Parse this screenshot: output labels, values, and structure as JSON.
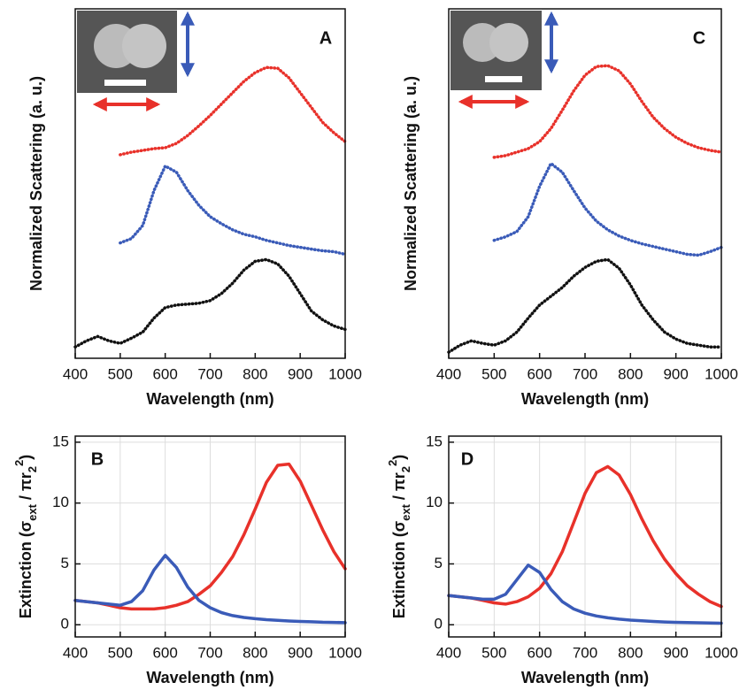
{
  "chart_data": [
    {
      "type": "line",
      "label": "A",
      "line_style": "dotted",
      "grid": false,
      "xlabel": "Wavelength (nm)",
      "ylabel": "Normalized Scattering (a. u.)",
      "xlim": [
        400,
        1000
      ],
      "xticks": [
        400,
        500,
        600,
        700,
        800,
        900,
        1000
      ],
      "ylim": [
        0,
        4
      ],
      "series": [
        {
          "color": "#e8312a",
          "x": [
            500,
            525,
            550,
            575,
            600,
            625,
            650,
            675,
            700,
            725,
            750,
            775,
            800,
            825,
            850,
            875,
            900,
            925,
            950,
            975,
            1000
          ],
          "values": [
            2.33,
            2.36,
            2.38,
            2.4,
            2.41,
            2.46,
            2.55,
            2.66,
            2.78,
            2.91,
            3.04,
            3.17,
            3.27,
            3.33,
            3.32,
            3.21,
            3.04,
            2.87,
            2.7,
            2.58,
            2.48
          ]
        },
        {
          "color": "#3a5bb8",
          "x": [
            500,
            525,
            550,
            575,
            600,
            625,
            650,
            675,
            700,
            725,
            750,
            775,
            800,
            825,
            850,
            875,
            900,
            925,
            950,
            975,
            1000
          ],
          "values": [
            1.32,
            1.37,
            1.52,
            1.92,
            2.2,
            2.13,
            1.92,
            1.75,
            1.62,
            1.54,
            1.47,
            1.42,
            1.39,
            1.35,
            1.32,
            1.29,
            1.27,
            1.25,
            1.23,
            1.22,
            1.19
          ]
        },
        {
          "color": "#111111",
          "x": [
            400,
            425,
            450,
            475,
            500,
            525,
            550,
            575,
            600,
            625,
            650,
            675,
            700,
            725,
            750,
            775,
            800,
            825,
            850,
            875,
            900,
            925,
            950,
            975,
            1000
          ],
          "values": [
            0.13,
            0.2,
            0.25,
            0.2,
            0.17,
            0.23,
            0.3,
            0.46,
            0.58,
            0.61,
            0.62,
            0.63,
            0.66,
            0.74,
            0.86,
            1.01,
            1.11,
            1.13,
            1.08,
            0.94,
            0.74,
            0.54,
            0.44,
            0.37,
            0.33
          ]
        }
      ]
    },
    {
      "type": "line",
      "label": "C",
      "line_style": "dotted",
      "grid": false,
      "xlabel": "Wavelength (nm)",
      "ylabel": "Normalized Scattering (a. u.)",
      "xlim": [
        400,
        1000
      ],
      "xticks": [
        400,
        500,
        600,
        700,
        800,
        900,
        1000
      ],
      "ylim": [
        0,
        4
      ],
      "series": [
        {
          "color": "#e8312a",
          "x": [
            500,
            525,
            550,
            575,
            600,
            625,
            650,
            675,
            700,
            725,
            750,
            775,
            800,
            825,
            850,
            875,
            900,
            925,
            950,
            975,
            1000
          ],
          "values": [
            2.3,
            2.32,
            2.36,
            2.4,
            2.48,
            2.63,
            2.84,
            3.06,
            3.24,
            3.34,
            3.35,
            3.29,
            3.14,
            2.94,
            2.76,
            2.63,
            2.53,
            2.46,
            2.41,
            2.38,
            2.36
          ]
        },
        {
          "color": "#3a5bb8",
          "x": [
            500,
            525,
            550,
            575,
            600,
            625,
            650,
            675,
            700,
            725,
            750,
            775,
            800,
            825,
            850,
            875,
            900,
            925,
            950,
            975,
            1000
          ],
          "values": [
            1.35,
            1.39,
            1.45,
            1.62,
            1.97,
            2.23,
            2.13,
            1.92,
            1.72,
            1.57,
            1.47,
            1.4,
            1.35,
            1.31,
            1.28,
            1.25,
            1.22,
            1.19,
            1.18,
            1.22,
            1.27
          ]
        },
        {
          "color": "#111111",
          "x": [
            400,
            425,
            450,
            475,
            500,
            525,
            550,
            575,
            600,
            625,
            650,
            675,
            700,
            725,
            750,
            775,
            800,
            825,
            850,
            875,
            900,
            925,
            950,
            975,
            1000
          ],
          "values": [
            0.07,
            0.15,
            0.2,
            0.17,
            0.15,
            0.2,
            0.3,
            0.46,
            0.61,
            0.71,
            0.81,
            0.94,
            1.04,
            1.11,
            1.13,
            1.03,
            0.84,
            0.61,
            0.44,
            0.3,
            0.22,
            0.17,
            0.15,
            0.13,
            0.13
          ]
        }
      ]
    },
    {
      "type": "line",
      "label": "B",
      "line_style": "solid",
      "grid": true,
      "xlabel": "Wavelength (nm)",
      "ylabel": [
        "Extinction  (σ",
        "ext",
        " / πr",
        "2",
        "2",
        ")"
      ],
      "xlim": [
        400,
        1000
      ],
      "xticks": [
        400,
        500,
        600,
        700,
        800,
        900,
        1000
      ],
      "ylim": [
        -1,
        15.5
      ],
      "yticks": [
        0,
        5,
        10,
        15
      ],
      "series": [
        {
          "color": "#e8312a",
          "x": [
            400,
            425,
            450,
            475,
            500,
            525,
            550,
            575,
            600,
            625,
            650,
            675,
            700,
            725,
            750,
            775,
            800,
            825,
            850,
            875,
            900,
            925,
            950,
            975,
            1000
          ],
          "values": [
            2.0,
            1.9,
            1.8,
            1.6,
            1.4,
            1.3,
            1.3,
            1.3,
            1.4,
            1.6,
            1.9,
            2.5,
            3.2,
            4.3,
            5.6,
            7.4,
            9.5,
            11.7,
            13.1,
            13.2,
            11.8,
            9.8,
            7.8,
            6.0,
            4.6
          ]
        },
        {
          "color": "#3a5bb8",
          "x": [
            400,
            425,
            450,
            475,
            500,
            525,
            550,
            575,
            600,
            625,
            650,
            675,
            700,
            725,
            750,
            775,
            800,
            825,
            850,
            875,
            900,
            925,
            950,
            975,
            1000
          ],
          "values": [
            2.0,
            1.9,
            1.8,
            1.7,
            1.6,
            1.9,
            2.8,
            4.5,
            5.7,
            4.7,
            3.1,
            2.0,
            1.4,
            1.0,
            0.75,
            0.6,
            0.5,
            0.42,
            0.36,
            0.31,
            0.27,
            0.24,
            0.21,
            0.19,
            0.17
          ]
        }
      ]
    },
    {
      "type": "line",
      "label": "D",
      "line_style": "solid",
      "grid": true,
      "xlabel": "Wavelength (nm)",
      "ylabel": [
        "Extinction  (σ",
        "ext",
        " / πr",
        "2",
        "2",
        ")"
      ],
      "xlim": [
        400,
        1000
      ],
      "xticks": [
        400,
        500,
        600,
        700,
        800,
        900,
        1000
      ],
      "ylim": [
        -1,
        15.5
      ],
      "yticks": [
        0,
        5,
        10,
        15
      ],
      "series": [
        {
          "color": "#e8312a",
          "x": [
            400,
            425,
            450,
            475,
            500,
            525,
            550,
            575,
            600,
            625,
            650,
            675,
            700,
            725,
            750,
            775,
            800,
            825,
            850,
            875,
            900,
            925,
            950,
            975,
            1000
          ],
          "values": [
            2.4,
            2.3,
            2.2,
            2.0,
            1.8,
            1.7,
            1.9,
            2.3,
            3.0,
            4.2,
            6.0,
            8.4,
            10.8,
            12.5,
            13.0,
            12.3,
            10.7,
            8.7,
            6.9,
            5.4,
            4.2,
            3.2,
            2.5,
            1.9,
            1.5
          ]
        },
        {
          "color": "#3a5bb8",
          "x": [
            400,
            425,
            450,
            475,
            500,
            525,
            550,
            575,
            600,
            625,
            650,
            675,
            700,
            725,
            750,
            775,
            800,
            825,
            850,
            875,
            900,
            925,
            950,
            975,
            1000
          ],
          "values": [
            2.4,
            2.3,
            2.2,
            2.1,
            2.1,
            2.5,
            3.7,
            4.9,
            4.3,
            2.9,
            1.9,
            1.3,
            0.95,
            0.72,
            0.57,
            0.46,
            0.38,
            0.32,
            0.27,
            0.23,
            0.2,
            0.18,
            0.16,
            0.14,
            0.13
          ]
        }
      ]
    }
  ]
}
